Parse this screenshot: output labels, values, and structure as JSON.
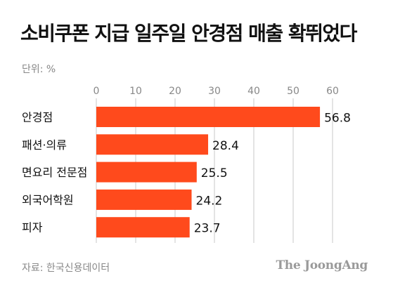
{
  "title": "소비쿠폰 지급 일주일 안경점 매출 확뛰었다",
  "unit": "단위: %",
  "source": "자료: 한국신용데이터",
  "brand": "The JoongAng",
  "colors": {
    "bar": "#ff4a1c",
    "grid": "#c8c8c8",
    "text": "#111111",
    "muted": "#888888"
  },
  "chart_data": {
    "type": "bar",
    "orientation": "horizontal",
    "categories": [
      "안경점",
      "패션·의류",
      "면요리 전문점",
      "외국어학원",
      "피자"
    ],
    "values": [
      56.8,
      28.4,
      25.5,
      24.2,
      23.7
    ],
    "xticks": [
      0,
      10,
      20,
      30,
      40,
      50,
      60
    ],
    "xlim": [
      0,
      63
    ],
    "xaxis_position": "top",
    "grid": true,
    "legend": "none"
  }
}
